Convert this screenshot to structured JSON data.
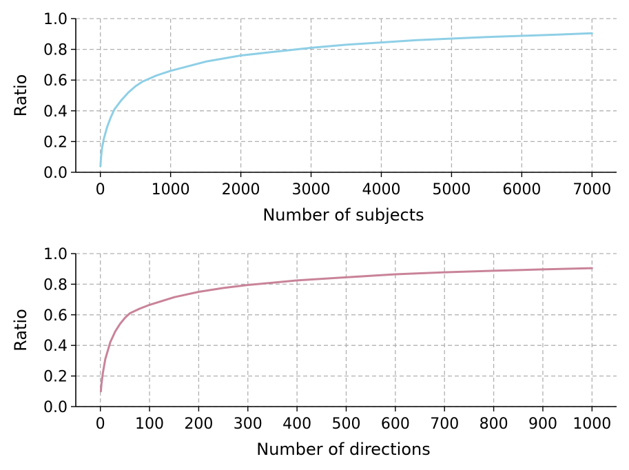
{
  "chart_data": [
    {
      "type": "line",
      "xlabel": "Number of subjects",
      "ylabel": "Ratio",
      "xlim": [
        -350,
        7350
      ],
      "ylim": [
        0,
        1
      ],
      "xticks": [
        0,
        1000,
        2000,
        3000,
        4000,
        5000,
        6000,
        7000
      ],
      "yticks": [
        0.0,
        0.2,
        0.4,
        0.6,
        0.8,
        1.0
      ],
      "ytick_labels": [
        "0.0",
        "0.2",
        "0.4",
        "0.6",
        "0.8",
        "1.0"
      ],
      "grid": true,
      "series": [
        {
          "color": "#8ecfe6",
          "x": [
            1,
            10,
            25,
            50,
            100,
            150,
            200,
            300,
            400,
            500,
            600,
            800,
            1000,
            1500,
            2000,
            2500,
            3000,
            3500,
            4000,
            4500,
            5000,
            5500,
            6000,
            6500,
            7000
          ],
          "y": [
            0.04,
            0.1,
            0.16,
            0.22,
            0.3,
            0.36,
            0.41,
            0.47,
            0.52,
            0.56,
            0.59,
            0.63,
            0.66,
            0.72,
            0.76,
            0.785,
            0.81,
            0.83,
            0.845,
            0.86,
            0.87,
            0.88,
            0.888,
            0.896,
            0.905
          ]
        }
      ]
    },
    {
      "type": "line",
      "xlabel": "Number of directions",
      "ylabel": "Ratio",
      "xlim": [
        -50,
        1050
      ],
      "ylim": [
        0,
        1
      ],
      "xticks": [
        0,
        100,
        200,
        300,
        400,
        500,
        600,
        700,
        800,
        900,
        1000
      ],
      "yticks": [
        0.0,
        0.2,
        0.4,
        0.6,
        0.8,
        1.0
      ],
      "ytick_labels": [
        "0.0",
        "0.2",
        "0.4",
        "0.6",
        "0.8",
        "1.0"
      ],
      "grid": true,
      "series": [
        {
          "color": "#c98399",
          "x": [
            1,
            2,
            5,
            10,
            20,
            30,
            40,
            50,
            60,
            80,
            100,
            150,
            200,
            250,
            300,
            350,
            400,
            500,
            600,
            700,
            800,
            900,
            1000
          ],
          "y": [
            0.1,
            0.14,
            0.22,
            0.31,
            0.42,
            0.49,
            0.54,
            0.58,
            0.61,
            0.64,
            0.665,
            0.715,
            0.75,
            0.775,
            0.795,
            0.81,
            0.825,
            0.845,
            0.865,
            0.878,
            0.888,
            0.897,
            0.905
          ]
        }
      ]
    }
  ]
}
